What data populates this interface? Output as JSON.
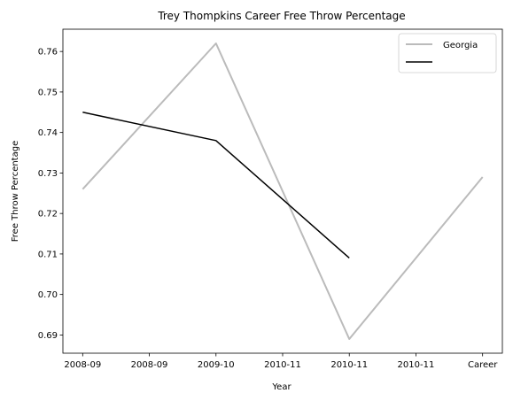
{
  "chart_data": {
    "type": "line",
    "title": "Trey Thompkins Career Free Throw Percentage",
    "xlabel": "Year",
    "ylabel": "Free Throw Percentage",
    "x_tick_labels": [
      "2008-09",
      "2008-09",
      "2009-10",
      "2010-11",
      "2010-11",
      "2010-11",
      "Career"
    ],
    "ylim": [
      0.6855,
      0.7655
    ],
    "y_ticks": [
      0.69,
      0.7,
      0.71,
      0.72,
      0.73,
      0.74,
      0.75,
      0.76
    ],
    "y_tick_labels": [
      "0.69",
      "0.70",
      "0.71",
      "0.72",
      "0.73",
      "0.74",
      "0.75",
      "0.76"
    ],
    "grid": false,
    "legend_position": "top-right",
    "series": [
      {
        "name": "Georgia",
        "color": "#bbbbbb",
        "points": [
          {
            "x": "2008-09",
            "y": 0.726
          },
          {
            "x": "2009-10",
            "y": 0.762
          },
          {
            "x": "2010-11",
            "y": 0.689
          },
          {
            "x": "Career",
            "y": 0.729
          }
        ]
      },
      {
        "name": "",
        "color": "#000000",
        "points": [
          {
            "x": "2008-09",
            "y": 0.745
          },
          {
            "x": "2009-10",
            "y": 0.738
          },
          {
            "x": "2010-11",
            "y": 0.709
          }
        ]
      }
    ]
  }
}
